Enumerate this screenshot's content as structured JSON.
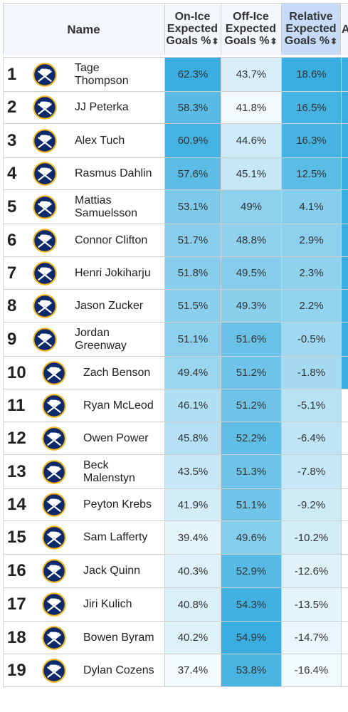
{
  "headers": {
    "name": "Name",
    "col1": [
      "On-Ice",
      "Expected",
      "Goals %"
    ],
    "col2": [
      "Off-Ice",
      "Expected",
      "Goals %"
    ],
    "col3": [
      "Relative",
      "Expected",
      "Goals %"
    ],
    "col4": "A",
    "sort_glyph": "⬍"
  },
  "logo_icon": "sabres-logo-icon",
  "colors": {
    "header_bg": "#f3f6fa",
    "active_header_bg": "#c5dbf7",
    "scale_high": "#3aaee0",
    "scale_low": "#ffffff"
  },
  "rows": [
    {
      "rank": "1",
      "name": [
        "Tage",
        "Thompson"
      ],
      "on_ice": "62.3%",
      "off_ice": "43.7%",
      "relative": "18.6%"
    },
    {
      "rank": "2",
      "name": [
        "JJ Peterka"
      ],
      "on_ice": "58.3%",
      "off_ice": "41.8%",
      "relative": "16.5%"
    },
    {
      "rank": "3",
      "name": [
        "Alex Tuch"
      ],
      "on_ice": "60.9%",
      "off_ice": "44.6%",
      "relative": "16.3%"
    },
    {
      "rank": "4",
      "name": [
        "Rasmus Dahlin"
      ],
      "on_ice": "57.6%",
      "off_ice": "45.1%",
      "relative": "12.5%"
    },
    {
      "rank": "5",
      "name": [
        "Mattias",
        "Samuelsson"
      ],
      "on_ice": "53.1%",
      "off_ice": "49%",
      "relative": "4.1%"
    },
    {
      "rank": "6",
      "name": [
        "Connor Clifton"
      ],
      "on_ice": "51.7%",
      "off_ice": "48.8%",
      "relative": "2.9%"
    },
    {
      "rank": "7",
      "name": [
        "Henri Jokiharju"
      ],
      "on_ice": "51.8%",
      "off_ice": "49.5%",
      "relative": "2.3%"
    },
    {
      "rank": "8",
      "name": [
        "Jason Zucker"
      ],
      "on_ice": "51.5%",
      "off_ice": "49.3%",
      "relative": "2.2%"
    },
    {
      "rank": "9",
      "name": [
        "Jordan",
        "Greenway"
      ],
      "on_ice": "51.1%",
      "off_ice": "51.6%",
      "relative": "-0.5%"
    },
    {
      "rank": "10",
      "name": [
        "Zach Benson"
      ],
      "on_ice": "49.4%",
      "off_ice": "51.2%",
      "relative": "-1.8%"
    },
    {
      "rank": "11",
      "name": [
        "Ryan McLeod"
      ],
      "on_ice": "46.1%",
      "off_ice": "51.2%",
      "relative": "-5.1%"
    },
    {
      "rank": "12",
      "name": [
        "Owen Power"
      ],
      "on_ice": "45.8%",
      "off_ice": "52.2%",
      "relative": "-6.4%"
    },
    {
      "rank": "13",
      "name": [
        "Beck",
        "Malenstyn"
      ],
      "on_ice": "43.5%",
      "off_ice": "51.3%",
      "relative": "-7.8%"
    },
    {
      "rank": "14",
      "name": [
        "Peyton Krebs"
      ],
      "on_ice": "41.9%",
      "off_ice": "51.1%",
      "relative": "-9.2%"
    },
    {
      "rank": "15",
      "name": [
        "Sam Lafferty"
      ],
      "on_ice": "39.4%",
      "off_ice": "49.6%",
      "relative": "-10.2%"
    },
    {
      "rank": "16",
      "name": [
        "Jack Quinn"
      ],
      "on_ice": "40.3%",
      "off_ice": "52.9%",
      "relative": "-12.6%"
    },
    {
      "rank": "17",
      "name": [
        "Jiri Kulich"
      ],
      "on_ice": "40.8%",
      "off_ice": "54.3%",
      "relative": "-13.5%"
    },
    {
      "rank": "18",
      "name": [
        "Bowen Byram"
      ],
      "on_ice": "40.2%",
      "off_ice": "54.9%",
      "relative": "-14.7%"
    },
    {
      "rank": "19",
      "name": [
        "Dylan Cozens"
      ],
      "on_ice": "37.4%",
      "off_ice": "53.8%",
      "relative": "-16.4%"
    }
  ]
}
